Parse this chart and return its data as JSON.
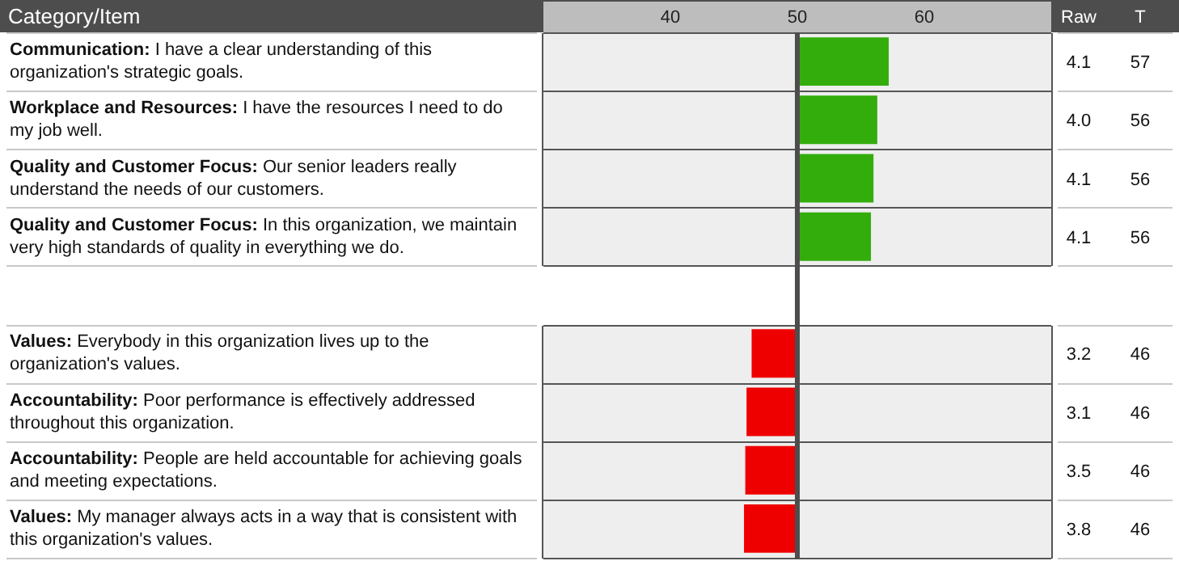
{
  "chart_data": {
    "type": "bar",
    "orientation": "horizontal",
    "ylabel": "Category/Item",
    "categories": [
      "Communication: I have a clear understanding of this organization's strategic goals.",
      "Workplace and Resources: I have the resources I need to do my job well.",
      "Quality and Customer Focus: Our senior leaders really understand the needs of our customers.",
      "Quality and Customer Focus: In this organization, we maintain very high standards of quality in everything we do.",
      null,
      "Values: Everybody in this organization lives up to the organization's values.",
      "Accountability: Poor performance is effectively addressed throughout this organization.",
      "Accountability: People are held accountable for achieving goals and meeting expectations.",
      "Values: My manager always acts in a way that is consistent with this organization's values."
    ],
    "values": [
      7.2,
      6.3,
      6.0,
      5.8,
      null,
      -3.6,
      -4.0,
      -4.1,
      -4.2
    ],
    "base": [
      50,
      50,
      50,
      50,
      null,
      50,
      50,
      50,
      50
    ],
    "colors": [
      "#33ad0c",
      "#33ad0c",
      "#33ad0c",
      "#33ad0c",
      null,
      "#ee0000",
      "#ee0000",
      "#ee0000",
      "#ee0000"
    ],
    "value_labels": [
      "57",
      "56",
      "56",
      "56",
      null,
      "46",
      "46",
      "46",
      "46"
    ],
    "xlim": [
      30,
      70
    ],
    "xticks": [
      40,
      50,
      60
    ],
    "ref_lines": [
      {
        "axis": "x",
        "value": 50,
        "color": "#4d4d4d"
      }
    ],
    "annotations": [
      "Raw",
      "T",
      "4.1",
      "4.0",
      "4.1",
      "4.1",
      "3.2",
      "3.1",
      "3.5",
      "3.8"
    ],
    "grid": "y",
    "legend": false
  }
}
